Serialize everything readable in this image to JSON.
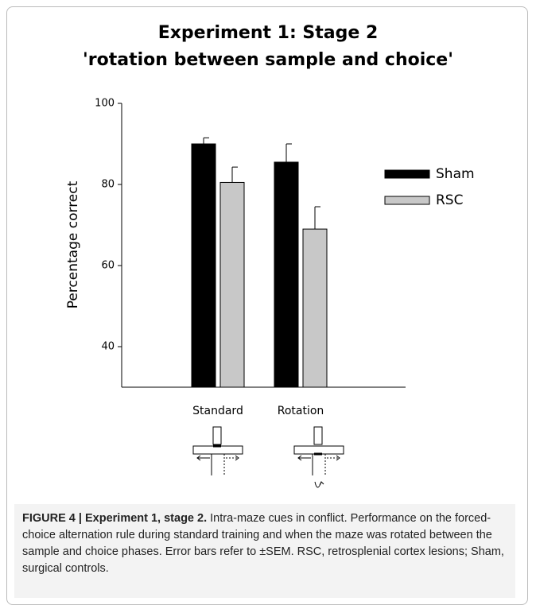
{
  "chart_data": {
    "type": "bar",
    "title": [
      "Experiment 1: Stage 2",
      "'rotation between sample and choice'"
    ],
    "y_label": "Percentage correct",
    "categories": [
      "Standard",
      "Rotation"
    ],
    "series": [
      {
        "name": "Sham",
        "color": "#000000",
        "values": [
          90,
          85.5
        ],
        "errors": [
          1.5,
          4.5
        ]
      },
      {
        "name": "RSC",
        "color": "#c8c8c8",
        "values": [
          80.5,
          69
        ],
        "errors": [
          3.8,
          5.5
        ]
      }
    ],
    "ylim": [
      30,
      100
    ],
    "yticks": [
      40,
      60,
      80,
      100
    ],
    "legend": "right"
  },
  "caption": {
    "label": "FIGURE 4 | Experiment 1, stage 2.",
    "text": "Intra-maze cues in conflict. Performance on the forced-choice alternation rule during standard training and when the maze was rotated between the sample and choice phases. Error bars refer to ±SEM. RSC, retrosplenial cortex lesions; Sham, surgical controls."
  }
}
